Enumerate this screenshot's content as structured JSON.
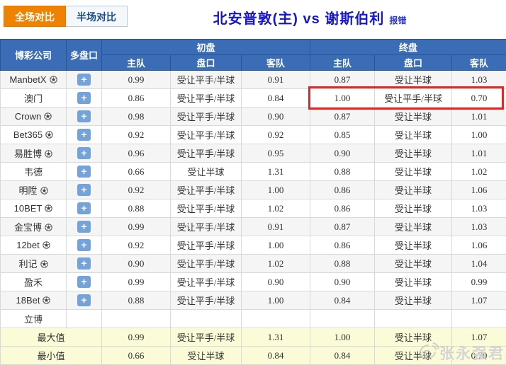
{
  "tabs": [
    {
      "label": "全场对比",
      "active": true
    },
    {
      "label": "半场对比",
      "active": false
    }
  ],
  "title": {
    "match": "北安普敦(主) vs 谢斯伯利",
    "report_error": "报错"
  },
  "table": {
    "headers": {
      "company": "博彩公司",
      "multi": "多盘口",
      "initial": "初盘",
      "final": "终盘",
      "home": "主队",
      "handicap": "盘口",
      "away": "客队"
    },
    "rows": [
      {
        "company": "ManbetX",
        "ball": true,
        "plus": true,
        "init": [
          "0.99",
          "受让平手/半球",
          "0.91"
        ],
        "final": [
          "0.87",
          "受让半球",
          "1.03"
        ],
        "highlight": false
      },
      {
        "company": "澳门",
        "ball": false,
        "plus": true,
        "init": [
          "0.86",
          "受让平手/半球",
          "0.84"
        ],
        "final": [
          "1.00",
          "受让平手/半球",
          "0.70"
        ],
        "highlight": true
      },
      {
        "company": "Crown",
        "ball": true,
        "plus": true,
        "init": [
          "0.98",
          "受让平手/半球",
          "0.90"
        ],
        "final": [
          "0.87",
          "受让半球",
          "1.01"
        ],
        "highlight": false
      },
      {
        "company": "Bet365",
        "ball": true,
        "plus": true,
        "init": [
          "0.92",
          "受让平手/半球",
          "0.92"
        ],
        "final": [
          "0.85",
          "受让半球",
          "1.00"
        ],
        "highlight": false
      },
      {
        "company": "易胜博",
        "ball": true,
        "plus": true,
        "init": [
          "0.96",
          "受让平手/半球",
          "0.95"
        ],
        "final": [
          "0.90",
          "受让半球",
          "1.01"
        ],
        "highlight": false
      },
      {
        "company": "韦德",
        "ball": false,
        "plus": true,
        "init": [
          "0.66",
          "受让半球",
          "1.31"
        ],
        "final": [
          "0.88",
          "受让半球",
          "1.02"
        ],
        "highlight": false
      },
      {
        "company": "明陞",
        "ball": true,
        "plus": true,
        "init": [
          "0.92",
          "受让平手/半球",
          "1.00"
        ],
        "final": [
          "0.86",
          "受让半球",
          "1.06"
        ],
        "highlight": false
      },
      {
        "company": "10BET",
        "ball": true,
        "plus": true,
        "init": [
          "0.88",
          "受让平手/半球",
          "1.02"
        ],
        "final": [
          "0.86",
          "受让半球",
          "1.03"
        ],
        "highlight": false
      },
      {
        "company": "金宝博",
        "ball": true,
        "plus": true,
        "init": [
          "0.99",
          "受让平手/半球",
          "0.91"
        ],
        "final": [
          "0.87",
          "受让半球",
          "1.03"
        ],
        "highlight": false
      },
      {
        "company": "12bet",
        "ball": true,
        "plus": true,
        "init": [
          "0.92",
          "受让平手/半球",
          "1.00"
        ],
        "final": [
          "0.86",
          "受让半球",
          "1.06"
        ],
        "highlight": false
      },
      {
        "company": "利记",
        "ball": true,
        "plus": true,
        "init": [
          "0.90",
          "受让平手/半球",
          "1.02"
        ],
        "final": [
          "0.88",
          "受让半球",
          "1.04"
        ],
        "highlight": false
      },
      {
        "company": "盈禾",
        "ball": false,
        "plus": true,
        "init": [
          "0.99",
          "受让平手/半球",
          "0.90"
        ],
        "final": [
          "0.90",
          "受让半球",
          "0.99"
        ],
        "highlight": false
      },
      {
        "company": "18Bet",
        "ball": true,
        "plus": true,
        "init": [
          "0.88",
          "受让平手/半球",
          "1.00"
        ],
        "final": [
          "0.84",
          "受让半球",
          "1.07"
        ],
        "highlight": false
      },
      {
        "company": "立博",
        "ball": false,
        "plus": false,
        "init": [
          "",
          "",
          ""
        ],
        "final": [
          "",
          "",
          ""
        ],
        "highlight": false
      }
    ],
    "summary": [
      {
        "label": "最大值",
        "init": [
          "0.99",
          "受让平手/半球",
          "1.31"
        ],
        "final": [
          "1.00",
          "受让半球",
          "1.07"
        ]
      },
      {
        "label": "最小值",
        "init": [
          "0.66",
          "受让半球",
          "0.84"
        ],
        "final": [
          "0.84",
          "受让半球",
          "0.70"
        ]
      }
    ],
    "plus_symbol": "+"
  },
  "watermark": {
    "text": "张永强君"
  },
  "colors": {
    "header_bg": "#3a6db6",
    "tab_active": "#ef8201",
    "summary_bg": "#fbfbd8",
    "highlight_border": "#e62626",
    "plus_button": "#74a3dc",
    "title_text": "#1616cf"
  }
}
